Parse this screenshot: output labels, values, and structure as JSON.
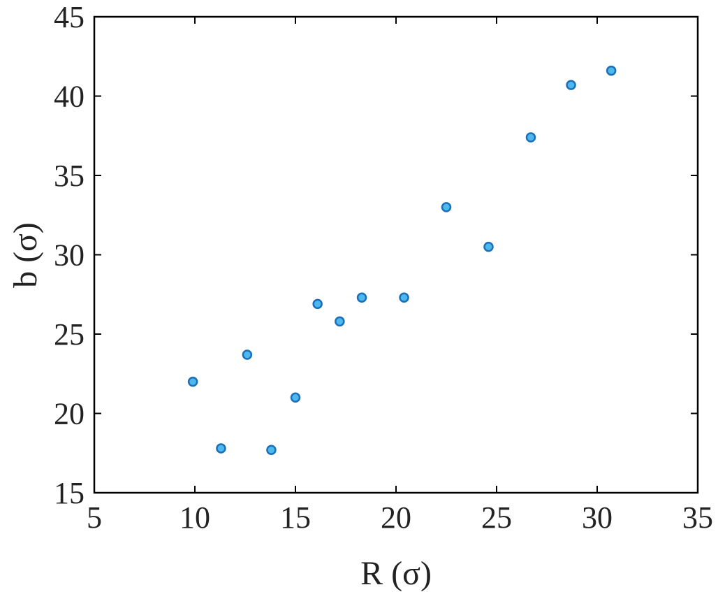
{
  "chart_data": {
    "type": "scatter",
    "title": "",
    "xlabel": "R (σ)",
    "ylabel": "b (σ)",
    "xlim": [
      5,
      35
    ],
    "ylim": [
      15,
      45
    ],
    "xticks": [
      5,
      10,
      15,
      20,
      25,
      30,
      35
    ],
    "yticks": [
      15,
      20,
      25,
      30,
      35,
      40,
      45
    ],
    "grid": false,
    "legend": "none",
    "marker": {
      "fill": "#4db8ee",
      "stroke": "#1a6fb8"
    },
    "points": [
      {
        "x": 9.9,
        "y": 22.0
      },
      {
        "x": 11.3,
        "y": 17.8
      },
      {
        "x": 12.6,
        "y": 23.7
      },
      {
        "x": 13.8,
        "y": 17.7
      },
      {
        "x": 15.0,
        "y": 21.0
      },
      {
        "x": 16.1,
        "y": 26.9
      },
      {
        "x": 17.2,
        "y": 25.8
      },
      {
        "x": 18.3,
        "y": 27.3
      },
      {
        "x": 20.4,
        "y": 27.3
      },
      {
        "x": 22.5,
        "y": 33.0
      },
      {
        "x": 24.6,
        "y": 30.5
      },
      {
        "x": 26.7,
        "y": 37.4
      },
      {
        "x": 28.7,
        "y": 40.7
      },
      {
        "x": 30.7,
        "y": 41.6
      }
    ]
  }
}
